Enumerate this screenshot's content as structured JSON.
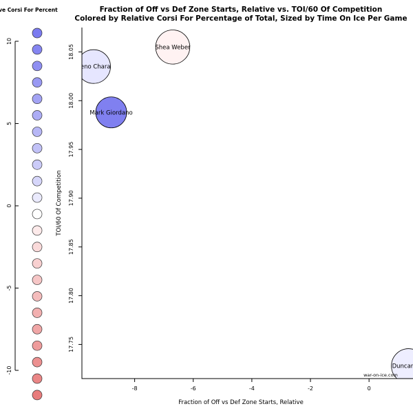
{
  "chart_data": {
    "type": "scatter",
    "title": "Fraction of Off vs Def Zone Starts, Relative vs. TOI/60 Of Competition",
    "subtitle": "Colored by Relative Corsi For Percentage of Total, Sized by Time On Ice Per Game",
    "xlabel": "Fraction of Off vs Def Zone Starts, Relative",
    "ylabel": "TOI/60 Of Competition",
    "xlim": [
      -9.8,
      1.5
    ],
    "ylim": [
      17.715,
      18.075
    ],
    "xticks": [
      "-8",
      "-6",
      "-4",
      "-2",
      "0"
    ],
    "yticks": [
      "17.75",
      "17.80",
      "17.85",
      "17.90",
      "17.95",
      "18.00",
      "18.05"
    ],
    "grid": false,
    "watermark": "war-on-ice.com",
    "points": [
      {
        "label": "Zdeno Chara",
        "visible_label": "deno Chara",
        "x": -9.4,
        "y": 18.035,
        "size": 24.5,
        "color": "#e6e6ff"
      },
      {
        "label": "Shea Weber",
        "x": -6.7,
        "y": 18.055,
        "size": 24.8,
        "color": "#fff2f2"
      },
      {
        "label": "Mark Giordano",
        "x": -8.8,
        "y": 17.988,
        "size": 22.5,
        "color": "#8080f0"
      },
      {
        "label": "Duncan Keith",
        "visible_label": "Duncan Kei",
        "x": 1.35,
        "y": 17.728,
        "size": 25.0,
        "color": "#eeeeff"
      }
    ],
    "legend": {
      "title": "Relative Corsi For Percent",
      "visible_title": "tive Corsi For Percent",
      "ticks": [
        "10",
        "5",
        "0",
        "-5",
        "-10"
      ],
      "range": [
        10.5,
        -10.5
      ],
      "swatches": [
        {
          "value": 10.5,
          "color": "#7b7bf0"
        },
        {
          "value": 9.5,
          "color": "#8585f1"
        },
        {
          "value": 8.5,
          "color": "#8f8ff2"
        },
        {
          "value": 7.5,
          "color": "#9999f3"
        },
        {
          "value": 6.5,
          "color": "#a3a3f4"
        },
        {
          "value": 5.5,
          "color": "#adadf5"
        },
        {
          "value": 4.5,
          "color": "#b7b7f6"
        },
        {
          "value": 3.5,
          "color": "#c1c1f7"
        },
        {
          "value": 2.5,
          "color": "#cbcbf8"
        },
        {
          "value": 1.5,
          "color": "#d6d6fa"
        },
        {
          "value": 0.5,
          "color": "#eaeafd"
        },
        {
          "value": -0.5,
          "color": "#ffffff"
        },
        {
          "value": -1.5,
          "color": "#fdeaea"
        },
        {
          "value": -2.5,
          "color": "#fadada"
        },
        {
          "value": -3.5,
          "color": "#f8d0d0"
        },
        {
          "value": -4.5,
          "color": "#f6c6c6"
        },
        {
          "value": -5.5,
          "color": "#f4bcbc"
        },
        {
          "value": -6.5,
          "color": "#f2b0b0"
        },
        {
          "value": -7.5,
          "color": "#f0a6a6"
        },
        {
          "value": -8.5,
          "color": "#ee9c9c"
        },
        {
          "value": -9.5,
          "color": "#ec9090"
        },
        {
          "value": -10.5,
          "color": "#ea8686"
        },
        {
          "value": -11.5,
          "color": "#e87c7c"
        }
      ]
    }
  }
}
